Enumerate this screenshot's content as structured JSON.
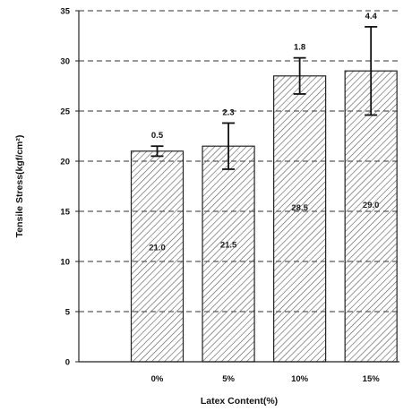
{
  "chart_data": {
    "type": "bar",
    "xlabel": "Latex Content(%)",
    "ylabel": "Tensile Stress(kgf/cm²)",
    "categories": [
      "0%",
      "5%",
      "10%",
      "15%"
    ],
    "values": [
      21.0,
      21.5,
      28.5,
      29.0
    ],
    "value_labels": [
      "21.0",
      "21.5",
      "28.5",
      "29.0"
    ],
    "errors": [
      0.5,
      2.3,
      1.8,
      4.4
    ],
    "error_labels": [
      "0.5",
      "2.3",
      "1.8",
      "4.4"
    ],
    "ylim": [
      0,
      35
    ],
    "yticks": [
      0,
      5,
      10,
      15,
      20,
      25,
      30,
      35
    ],
    "grid": "horizontal dashed",
    "bar_fill": "diagonal hatch",
    "colors": {
      "bar_edge": "#222222",
      "hatch": "#555555",
      "grid": "#333333"
    }
  }
}
